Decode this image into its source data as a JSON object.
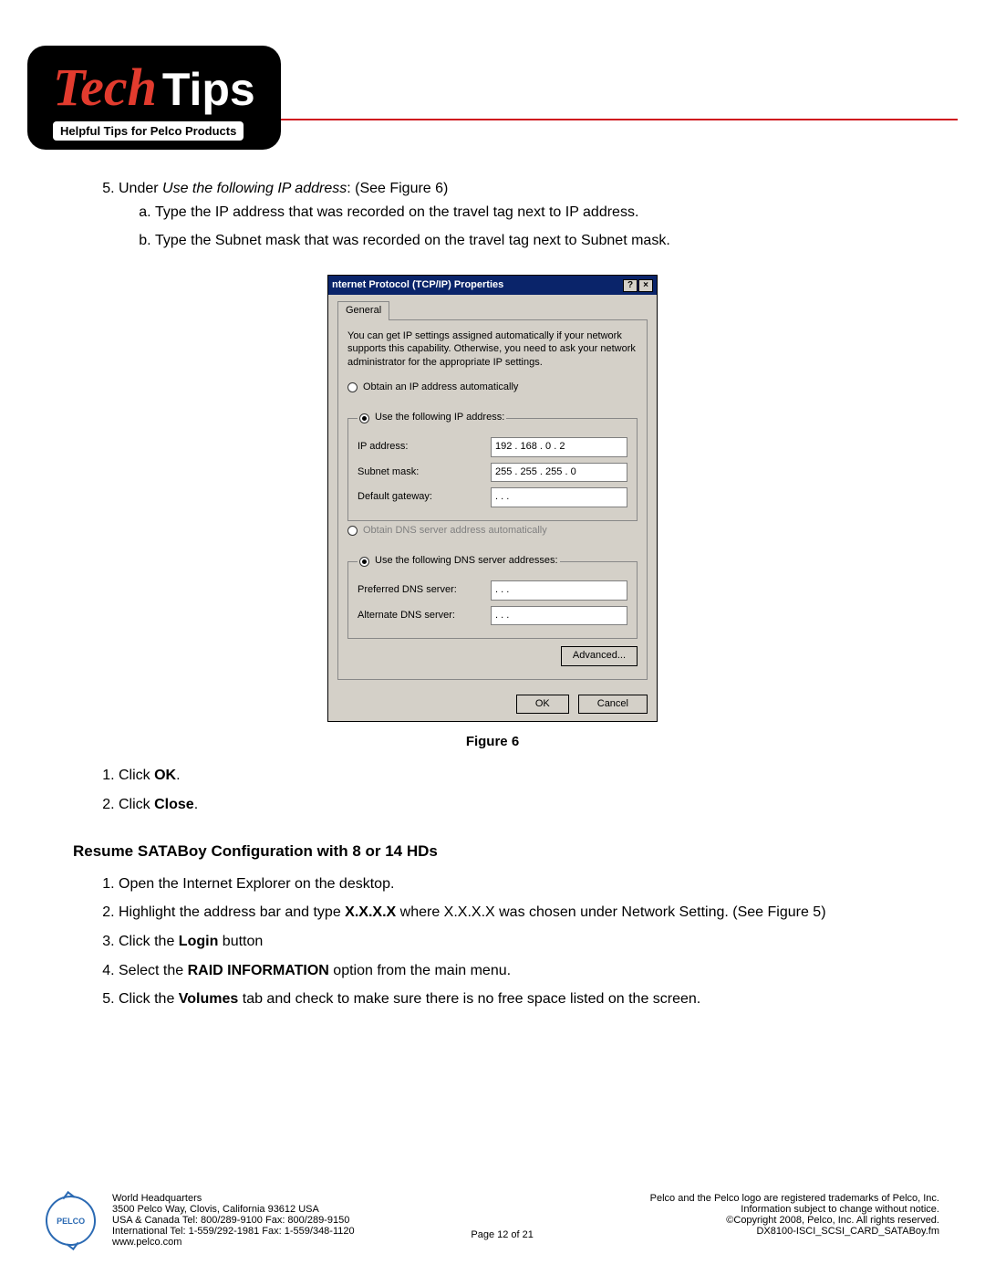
{
  "logo": {
    "tech": "Tech",
    "tips": "Tips",
    "subtitle": "Helpful Tips for Pelco Products"
  },
  "step5": {
    "number": "5.",
    "lead": "Under ",
    "em": "Use the following IP address",
    "trail": ": (See Figure 6)",
    "a": "Type the IP address that was recorded on the travel tag next to IP address.",
    "b": "Type the Subnet mask that was recorded on the travel tag next to Subnet mask."
  },
  "dialog": {
    "title": "nternet Protocol (TCP/IP) Properties",
    "help_btn": "?",
    "close_btn": "×",
    "tab": "General",
    "info": "You can get IP settings assigned automatically if your network supports this capability. Otherwise, you need to ask your network administrator for the appropriate IP settings.",
    "radio_auto_ip": "Obtain an IP address automatically",
    "radio_manual_ip": "Use the following IP address:",
    "ip_label": "IP address:",
    "ip_value": "192 . 168 .   0  .   2",
    "subnet_label": "Subnet mask:",
    "subnet_value": "255 . 255 . 255 .   0",
    "gateway_label": "Default gateway:",
    "gateway_value": "     .        .        .",
    "radio_auto_dns": "Obtain DNS server address automatically",
    "radio_manual_dns": "Use the following DNS server addresses:",
    "pref_dns_label": "Preferred DNS server:",
    "pref_dns_value": "     .        .        .",
    "alt_dns_label": "Alternate DNS server:",
    "alt_dns_value": "     .        .        .",
    "advanced": "Advanced...",
    "ok": "OK",
    "cancel": "Cancel"
  },
  "fig_caption": "Figure 6",
  "after_fig": {
    "s1_a": "Click ",
    "s1_b": "OK",
    "s1_c": ".",
    "s2_a": "Click ",
    "s2_b": "Close",
    "s2_c": "."
  },
  "heading2": "Resume SATABoy Configuration with 8 or 14 HDs",
  "resume": {
    "s1": "Open the Internet Explorer on the desktop.",
    "s2_a": "Highlight the address bar and type ",
    "s2_b": "X.X.X.X",
    "s2_c": " where X.X.X.X was chosen under Network Setting. (See Figure 5)",
    "s3_a": "Click the ",
    "s3_b": "Login",
    "s3_c": " button",
    "s4_a": "Select the ",
    "s4_b": "RAID INFORMATION",
    "s4_c": " option from the main menu.",
    "s5_a": "Click the ",
    "s5_b": "Volumes",
    "s5_c": " tab and check to make sure there is no free space listed on the screen."
  },
  "footer": {
    "logo_text": "PELCO",
    "hq1": "World Headquarters",
    "hq2": "3500 Pelco Way, Clovis, California 93612 USA",
    "hq3": "USA & Canada  Tel: 800/289-9100  Fax: 800/289-9150",
    "hq4": "International Tel: 1-559/292-1981 Fax: 1-559/348-1120",
    "hq5": "www.pelco.com",
    "page": "Page 12 of 21",
    "r1": "Pelco and the Pelco logo are registered trademarks of Pelco, Inc.",
    "r2": "Information subject to change without notice.",
    "r3": "©Copyright 2008, Pelco, Inc. All rights reserved.",
    "r4": "DX8100-ISCI_SCSI_CARD_SATABoy.fm"
  }
}
